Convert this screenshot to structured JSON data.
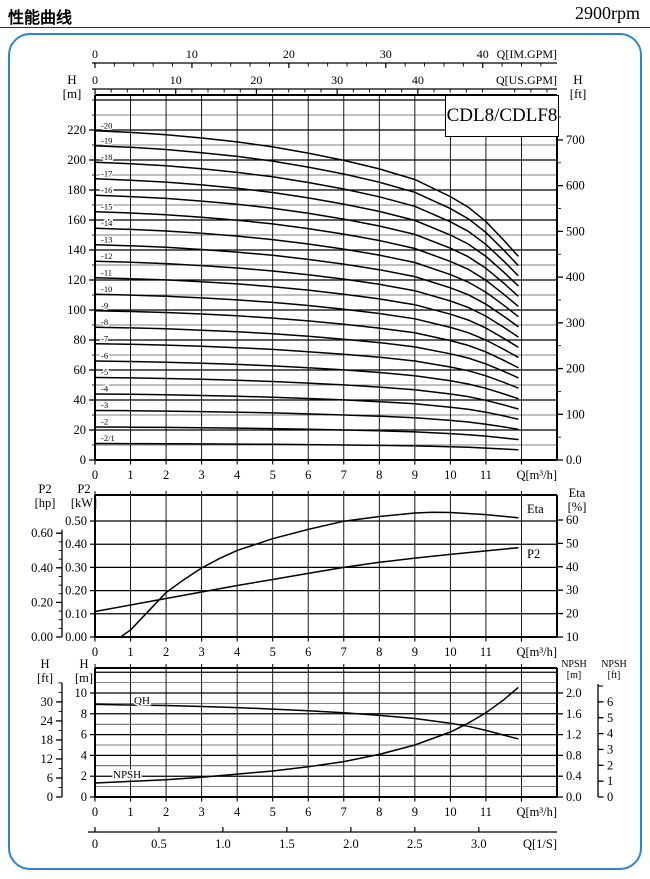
{
  "page": {
    "title": "性能曲线",
    "rpm": "2900rpm",
    "model": "CDL8/CDLF8"
  },
  "colors": {
    "frame_blue": "#2b85d2",
    "line_black": "#000000"
  },
  "chart_data": [
    {
      "type": "line",
      "name": "head-capacity-curves",
      "x_axis": {
        "label": "Q[m³/h]",
        "ticks": [
          "0",
          "1",
          "2",
          "3",
          "4",
          "5",
          "6",
          "7",
          "8",
          "9",
          "10",
          "11"
        ],
        "range": [
          0,
          13
        ]
      },
      "top_axes": [
        {
          "label": "Q[IM.GPM]",
          "ticks": [
            "0",
            "10",
            "20",
            "30",
            "40"
          ],
          "m3h_per_unit": 0.27276,
          "minor_step": 2,
          "minor_max": 46
        },
        {
          "label": "Q[US.GPM]",
          "ticks": [
            "0",
            "10",
            "20",
            "30",
            "40"
          ],
          "m3h_per_unit": 0.22712,
          "minor_step": 2,
          "minor_max": 56
        }
      ],
      "y_left": {
        "sym": "H",
        "unit": "[m]",
        "ticks": [
          "0",
          "20",
          "40",
          "60",
          "80",
          "100",
          "120",
          "140",
          "160",
          "180",
          "200",
          "220"
        ],
        "range": [
          0,
          243
        ],
        "grid_minor": 10
      },
      "y_right": {
        "sym": "H",
        "unit": "[ft]",
        "ticks": [
          "0.0",
          "100",
          "200",
          "300",
          "400",
          "500",
          "600",
          "700"
        ],
        "m_per_ft": 0.3048,
        "minor_step": 50
      },
      "shape": {
        "q": [
          0,
          1,
          2,
          3,
          4,
          5,
          6,
          7,
          8,
          9,
          10,
          10.5,
          11,
          11.5,
          11.9
        ],
        "f": [
          1.0,
          0.995,
          0.988,
          0.978,
          0.966,
          0.951,
          0.932,
          0.91,
          0.884,
          0.852,
          0.8,
          0.768,
          0.724,
          0.668,
          0.62
        ]
      },
      "series": [
        {
          "label": "-2/1",
          "h0": 11
        },
        {
          "label": "-2",
          "h0": 22
        },
        {
          "label": "-3",
          "h0": 33
        },
        {
          "label": "-4",
          "h0": 44
        },
        {
          "label": "-5",
          "h0": 55
        },
        {
          "label": "-6",
          "h0": 66
        },
        {
          "label": "-7",
          "h0": 77.5
        },
        {
          "label": "-8",
          "h0": 88.5
        },
        {
          "label": "-9",
          "h0": 99.5
        },
        {
          "label": "-10",
          "h0": 110.5
        },
        {
          "label": "-11",
          "h0": 121.5
        },
        {
          "label": "-12",
          "h0": 132.5
        },
        {
          "label": "-13",
          "h0": 143.5
        },
        {
          "label": "-14",
          "h0": 154.5
        },
        {
          "label": "-15",
          "h0": 165.5
        },
        {
          "label": "-16",
          "h0": 176.5
        },
        {
          "label": "-17",
          "h0": 187.5
        },
        {
          "label": "-18",
          "h0": 198.5
        },
        {
          "label": "-19",
          "h0": 209.5
        },
        {
          "label": "-20",
          "h0": 219.5
        }
      ]
    },
    {
      "type": "line",
      "name": "power-efficiency",
      "x_axis": {
        "label": "Q[m³/h]",
        "ticks": [
          "0",
          "1",
          "2",
          "3",
          "4",
          "5",
          "6",
          "7",
          "8",
          "9",
          "10",
          "11"
        ],
        "range": [
          0,
          13
        ]
      },
      "y_kw": {
        "sym": "P2",
        "unit": "[kW]",
        "ticks": [
          "0.00",
          "0.10",
          "0.20",
          "0.30",
          "0.40",
          "0.50"
        ],
        "range": [
          0,
          0.612
        ]
      },
      "y_hp": {
        "sym": "P2",
        "unit": "[hp]",
        "ticks": [
          "0.00",
          "0.20",
          "0.40",
          "0.60"
        ],
        "kw_per_hp": 0.7457,
        "minor_step": 0.05
      },
      "y_eta": {
        "sym": "Eta",
        "unit": "[%]",
        "ticks": [
          "10",
          "20",
          "30",
          "40",
          "50",
          "60"
        ],
        "range": [
          10,
          70.7
        ]
      },
      "series": [
        {
          "label": "P2",
          "axis": "kw",
          "q": [
            0,
            1,
            2,
            3,
            4,
            5,
            6,
            7,
            8,
            9,
            10,
            11,
            11.9
          ],
          "v": [
            0.11,
            0.138,
            0.166,
            0.194,
            0.222,
            0.248,
            0.274,
            0.3,
            0.322,
            0.34,
            0.356,
            0.371,
            0.385
          ]
        },
        {
          "label": "Eta",
          "axis": "eta",
          "q": [
            0.72,
            1,
            1.5,
            2,
            2.5,
            3,
            3.5,
            4,
            5,
            6,
            7,
            8,
            9,
            9.5,
            10,
            11,
            11.9
          ],
          "v": [
            10,
            13,
            21,
            29,
            34.5,
            39.5,
            43.5,
            47,
            52,
            56,
            59.5,
            61.5,
            63,
            63.3,
            63.2,
            62.3,
            61
          ]
        }
      ]
    },
    {
      "type": "line",
      "name": "single-stage-head-npsh",
      "x_axis": {
        "label": "Q[m³/h]",
        "ticks": [
          "0",
          "1",
          "2",
          "3",
          "4",
          "5",
          "6",
          "7",
          "8",
          "9",
          "10",
          "11"
        ],
        "range": [
          0,
          13
        ]
      },
      "y_m": {
        "sym": "H",
        "unit": "[m]",
        "ticks": [
          "0",
          "2",
          "4",
          "6",
          "8",
          "10"
        ],
        "range": [
          0,
          12.4
        ],
        "grid_minor": 1
      },
      "y_ft": {
        "sym": "H",
        "unit": "[ft]",
        "ticks": [
          "0",
          "6",
          "12",
          "18",
          "24",
          "30"
        ],
        "m_per_ft": 0.3048,
        "minor_step": 3,
        "top_tick": 36
      },
      "y_npsh_m": {
        "sym": "NPSH",
        "unit": "[m]",
        "ticks": [
          "0.0",
          "0.4",
          "0.8",
          "1.2",
          "1.6",
          "2.0"
        ],
        "range": [
          0,
          2.48
        ]
      },
      "y_npsh_ft": {
        "sym": "NPSH",
        "unit": "[ft]",
        "ticks": [
          "0",
          "1",
          "2",
          "3",
          "4",
          "5",
          "6"
        ],
        "m_per_ft": 0.3048,
        "top_tick": 7
      },
      "ls_axis": {
        "label": "Q[1/S]",
        "ticks": [
          "0",
          "0.5",
          "1.0",
          "1.5",
          "2.0",
          "2.5",
          "3.0"
        ],
        "m3h_per_unit": 3.6
      },
      "series": [
        {
          "label": "QH",
          "axis": "m",
          "q": [
            0,
            1,
            2,
            3,
            4,
            5,
            6,
            7,
            8,
            9,
            10,
            10.5,
            11,
            11.5,
            11.9
          ],
          "v": [
            8.9,
            8.85,
            8.8,
            8.7,
            8.6,
            8.45,
            8.3,
            8.1,
            7.85,
            7.55,
            7.1,
            6.8,
            6.4,
            5.95,
            5.6
          ]
        },
        {
          "label": "NPSH",
          "axis": "npsh",
          "q": [
            0,
            1,
            2,
            3,
            4,
            5,
            6,
            7,
            8,
            9,
            10,
            10.5,
            11,
            11.5,
            11.9
          ],
          "v": [
            0.27,
            0.3,
            0.33,
            0.38,
            0.44,
            0.5,
            0.58,
            0.68,
            0.82,
            1.0,
            1.25,
            1.42,
            1.62,
            1.87,
            2.1
          ]
        }
      ]
    }
  ]
}
